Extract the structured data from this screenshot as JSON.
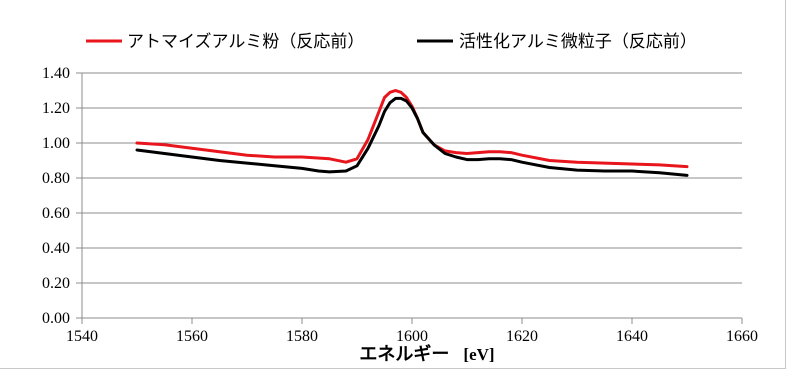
{
  "chart_data": {
    "type": "line",
    "title": "",
    "xlabel": "エネルギー",
    "xlabel_unit": "[eV]",
    "ylabel": "",
    "xlim": [
      1540,
      1660
    ],
    "ylim": [
      0.0,
      1.4
    ],
    "xticks": [
      "1540",
      "1560",
      "1580",
      "1600",
      "1620",
      "1640",
      "1660"
    ],
    "yticks": [
      "0.00",
      "0.20",
      "0.40",
      "0.60",
      "0.80",
      "1.00",
      "1.20",
      "1.40"
    ],
    "grid": "horizontal",
    "legend_position": "top",
    "series": [
      {
        "name": "アトマイズアルミ粉（反応前）",
        "color": "#e8161c",
        "x": [
          1550,
          1555,
          1560,
          1565,
          1570,
          1575,
          1580,
          1585,
          1588,
          1590,
          1592,
          1594,
          1595,
          1596,
          1597,
          1598,
          1599,
          1600,
          1601,
          1602,
          1604,
          1606,
          1608,
          1610,
          1612,
          1614,
          1616,
          1618,
          1620,
          1625,
          1630,
          1635,
          1640,
          1645,
          1650
        ],
        "y": [
          1.0,
          0.99,
          0.97,
          0.95,
          0.93,
          0.92,
          0.92,
          0.91,
          0.89,
          0.91,
          1.02,
          1.18,
          1.26,
          1.29,
          1.3,
          1.29,
          1.26,
          1.21,
          1.14,
          1.06,
          0.99,
          0.955,
          0.945,
          0.94,
          0.945,
          0.95,
          0.95,
          0.945,
          0.93,
          0.9,
          0.89,
          0.885,
          0.88,
          0.875,
          0.865
        ]
      },
      {
        "name": "活性化アルミ微粒子（反応前）",
        "color": "#000000",
        "x": [
          1550,
          1555,
          1560,
          1565,
          1570,
          1575,
          1580,
          1583,
          1585,
          1588,
          1590,
          1592,
          1594,
          1595,
          1596,
          1597,
          1598,
          1599,
          1600,
          1601,
          1602,
          1604,
          1606,
          1608,
          1610,
          1612,
          1614,
          1616,
          1618,
          1620,
          1625,
          1630,
          1635,
          1640,
          1645,
          1650
        ],
        "y": [
          0.96,
          0.94,
          0.92,
          0.9,
          0.885,
          0.87,
          0.855,
          0.84,
          0.835,
          0.84,
          0.87,
          0.97,
          1.1,
          1.18,
          1.23,
          1.255,
          1.255,
          1.24,
          1.2,
          1.14,
          1.06,
          0.99,
          0.94,
          0.92,
          0.905,
          0.905,
          0.91,
          0.91,
          0.905,
          0.89,
          0.86,
          0.845,
          0.84,
          0.84,
          0.83,
          0.815
        ]
      }
    ]
  }
}
